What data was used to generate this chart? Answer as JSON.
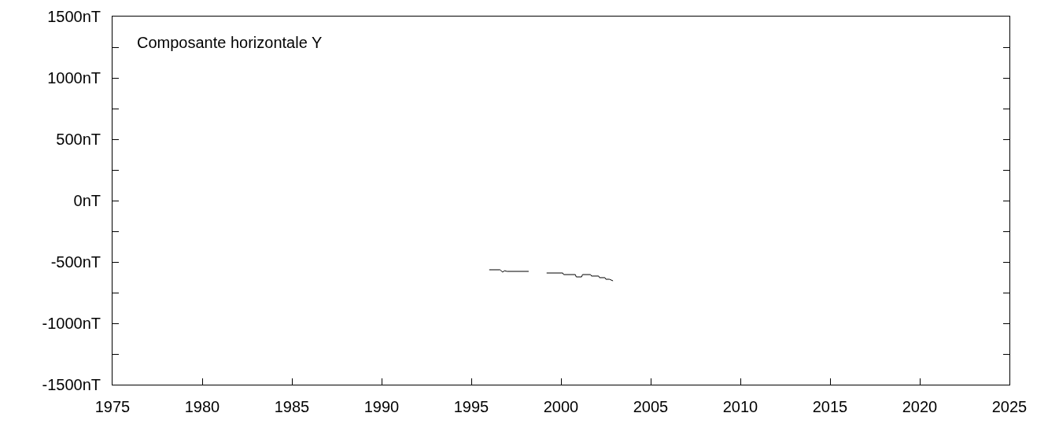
{
  "chart_data": {
    "type": "line",
    "annotations": [
      "Composante horizontale Y"
    ],
    "x": [
      1996.0,
      1996.6,
      1996.75,
      1996.85,
      1997.0,
      1998.2,
      1998.7,
      1999.2,
      2000.1,
      2000.15,
      2000.8,
      2000.85,
      2001.15,
      2001.2,
      2001.65,
      2001.7,
      2002.1,
      2002.15,
      2002.45,
      2002.5,
      2002.7,
      2002.9
    ],
    "series": [
      {
        "color": "#000000",
        "values": [
          -564,
          -564,
          -583,
          -572,
          -577,
          -577,
          null,
          -590,
          -590,
          -603,
          -603,
          -622,
          -622,
          -603,
          -603,
          -615,
          -615,
          -628,
          -628,
          -641,
          -641,
          -654
        ]
      }
    ],
    "xlim": [
      1975,
      2025
    ],
    "xticks": [
      1975,
      1980,
      1985,
      1990,
      1995,
      2000,
      2005,
      2010,
      2015,
      2020,
      2025
    ],
    "ylim": [
      -1500,
      1500
    ],
    "yticks": [
      {
        "value": -1500,
        "label": "-1500nT"
      },
      {
        "value": -1250,
        "label": null
      },
      {
        "value": -1000,
        "label": "-1000nT"
      },
      {
        "value": -750,
        "label": null
      },
      {
        "value": -500,
        "label": "-500nT"
      },
      {
        "value": -250,
        "label": null
      },
      {
        "value": 0,
        "label": "0nT"
      },
      {
        "value": 250,
        "label": null
      },
      {
        "value": 500,
        "label": "500nT"
      },
      {
        "value": 750,
        "label": null
      },
      {
        "value": 1000,
        "label": "1000nT"
      },
      {
        "value": 1250,
        "label": null
      },
      {
        "value": 1500,
        "label": "1500nT"
      }
    ],
    "grid": false,
    "marker": "none",
    "line_style": "solid"
  }
}
